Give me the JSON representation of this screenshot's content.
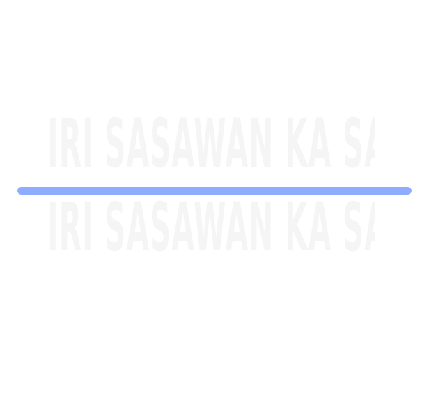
{
  "watermark": {
    "line1": "IRI SASAWAN KA SANSE RA",
    "line2": "IRI SASAWAN KA SANSE RA"
  },
  "progress": {
    "value": 1.0,
    "fill_color": "#8fadff",
    "track_color": "#e8eefb"
  }
}
